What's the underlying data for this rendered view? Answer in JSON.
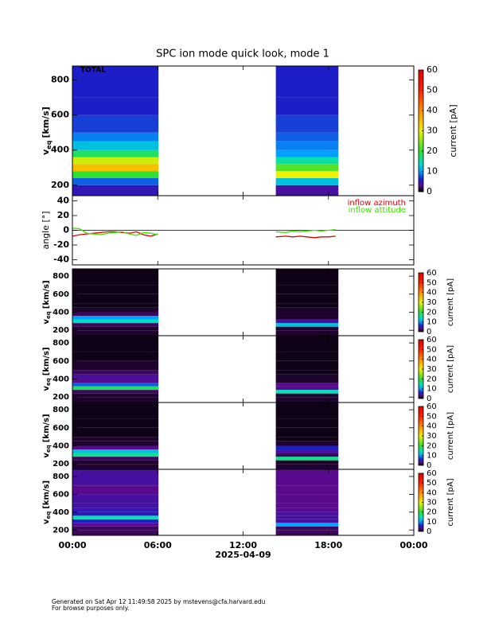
{
  "colormap": [
    [
      0,
      "#000000"
    ],
    [
      3,
      "#5a0a8c"
    ],
    [
      6,
      "#1e1ec8"
    ],
    [
      10,
      "#00a0ff"
    ],
    [
      14,
      "#00e0c0"
    ],
    [
      20,
      "#30e030"
    ],
    [
      30,
      "#f0f000"
    ],
    [
      40,
      "#ff8c00"
    ],
    [
      50,
      "#ff2000"
    ],
    [
      60,
      "#e00000"
    ]
  ],
  "footer": [
    "Generated on Sat Apr 12 11:49:58 2025 by mstevens@cfa.harvard.edu",
    "For browse purposes only."
  ],
  "chart_data": [
    {
      "type": "heatmap",
      "title": "SPC ion mode quick look, mode 1",
      "label": "TOTAL",
      "y_label": "v",
      "y_label_sub": "eq",
      "y_label_unit": "[km/s]",
      "xlim": [
        0,
        24
      ],
      "ylim": [
        140,
        880
      ],
      "yticks": [
        200,
        400,
        600,
        800
      ],
      "intervals": [
        [
          0,
          6.05
        ],
        [
          14.3,
          18.7
        ]
      ],
      "ybins": [
        140,
        200,
        240,
        280,
        320,
        360,
        400,
        450,
        500,
        600,
        700,
        880
      ],
      "values": [
        [
          5,
          8,
          20,
          35,
          28,
          18,
          12,
          9,
          7,
          6,
          6
        ],
        [
          4,
          12,
          30,
          22,
          15,
          10,
          9,
          8,
          7,
          6,
          6
        ]
      ],
      "clim": [
        0,
        60
      ],
      "cticks": [
        0,
        10,
        20,
        30,
        40,
        50,
        60
      ],
      "clabel": "current [pA]"
    },
    {
      "type": "line",
      "y_label": "angle [°]",
      "xlim": [
        0,
        24
      ],
      "ylim": [
        -47,
        47
      ],
      "yticks": [
        -40,
        -20,
        0,
        20,
        40
      ],
      "zeroline": true,
      "legend": "top-right",
      "x": [
        0,
        0.5,
        1,
        1.5,
        2,
        2.5,
        3,
        3.5,
        4,
        4.5,
        5,
        5.5,
        6,
        10,
        14.3,
        15,
        15.5,
        16,
        16.5,
        17,
        17.5,
        18,
        18.5
      ],
      "series": [
        {
          "name": "inflow azimuth",
          "color": "#e00000",
          "values": [
            -8,
            -6,
            -5,
            -4,
            -3,
            -2,
            -2,
            -3,
            -4,
            -2,
            -6,
            -8,
            -5,
            null,
            -9,
            -8,
            -9,
            -8,
            -9,
            -10,
            -9,
            -9,
            -8
          ]
        },
        {
          "name": "inflow attitude",
          "color": "#40e000",
          "values": [
            3,
            2,
            -4,
            -5,
            -6,
            -4,
            -3,
            -2,
            -5,
            -7,
            -3,
            -4,
            -6,
            null,
            -2,
            -3,
            -1,
            -2,
            -1,
            0,
            -1,
            0,
            1
          ]
        }
      ]
    },
    {
      "type": "heatmap",
      "y_label": "v",
      "y_label_sub": "eq",
      "y_label_unit": "[km/s]",
      "xlim": [
        0,
        24
      ],
      "ylim": [
        140,
        880
      ],
      "yticks": [
        200,
        400,
        600,
        800
      ],
      "intervals": [
        [
          0,
          6.05
        ],
        [
          14.3,
          18.7
        ]
      ],
      "ybins": [
        140,
        200,
        240,
        280,
        320,
        360,
        400,
        450,
        500,
        600,
        700,
        880
      ],
      "values": [
        [
          1,
          1,
          2,
          14,
          10,
          2,
          1,
          0.5,
          0.5,
          0.5,
          0.5
        ],
        [
          1,
          1,
          12,
          4,
          1,
          1,
          1,
          0.5,
          0.5,
          0.5,
          0.5
        ]
      ],
      "clim": [
        0,
        60
      ],
      "cticks": [
        0,
        10,
        20,
        30,
        40,
        50,
        60
      ],
      "clabel": "current [pA]"
    },
    {
      "type": "heatmap",
      "y_label": "v",
      "y_label_sub": "eq",
      "y_label_unit": "[km/s]",
      "xlim": [
        0,
        24
      ],
      "ylim": [
        140,
        880
      ],
      "yticks": [
        200,
        400,
        600,
        800
      ],
      "intervals": [
        [
          0,
          6.05
        ],
        [
          14.3,
          18.7
        ]
      ],
      "ybins": [
        140,
        200,
        240,
        280,
        320,
        360,
        400,
        450,
        500,
        600,
        700,
        880
      ],
      "values": [
        [
          1,
          1,
          2,
          18,
          8,
          3,
          4,
          2,
          1,
          0.5,
          0.5
        ],
        [
          1,
          1,
          14,
          3,
          3,
          1,
          1,
          0.5,
          0.5,
          0.5,
          0.5
        ]
      ],
      "clim": [
        0,
        60
      ],
      "cticks": [
        0,
        10,
        20,
        30,
        40,
        50,
        60
      ],
      "clabel": "current [pA]"
    },
    {
      "type": "heatmap",
      "y_label": "v",
      "y_label_sub": "eq",
      "y_label_unit": "[km/s]",
      "xlim": [
        0,
        24
      ],
      "ylim": [
        140,
        880
      ],
      "yticks": [
        200,
        400,
        600,
        800
      ],
      "intervals": [
        [
          0,
          6.05
        ],
        [
          14.3,
          18.7
        ]
      ],
      "ybins": [
        140,
        200,
        240,
        280,
        320,
        360,
        400,
        450,
        500,
        600,
        700,
        880
      ],
      "values": [
        [
          1,
          1,
          2,
          16,
          12,
          3,
          1,
          1,
          0.5,
          0.5,
          0.5
        ],
        [
          1,
          1,
          16,
          2,
          4,
          6,
          1,
          0.5,
          0.5,
          0.5,
          0.5
        ]
      ],
      "clim": [
        0,
        60
      ],
      "cticks": [
        0,
        10,
        20,
        30,
        40,
        50,
        60
      ],
      "clabel": "current [pA]"
    },
    {
      "type": "heatmap",
      "y_label": "v",
      "y_label_sub": "eq",
      "y_label_unit": "[km/s]",
      "xlim": [
        0,
        24
      ],
      "ylim": [
        140,
        880
      ],
      "yticks": [
        200,
        400,
        600,
        800
      ],
      "intervals": [
        [
          0,
          6.05
        ],
        [
          14.3,
          18.7
        ]
      ],
      "ybins": [
        140,
        200,
        240,
        280,
        320,
        360,
        400,
        450,
        500,
        600,
        700,
        880
      ],
      "values": [
        [
          2,
          2,
          3,
          6,
          14,
          5,
          5,
          4,
          4,
          3,
          4
        ],
        [
          2,
          2,
          10,
          4,
          4,
          4,
          3,
          3,
          3,
          3,
          3
        ]
      ],
      "clim": [
        0,
        60
      ],
      "cticks": [
        0,
        10,
        20,
        30,
        40,
        50,
        60
      ],
      "clabel": "current [pA]",
      "xticks": [
        {
          "value": 0,
          "label": "00:00"
        },
        {
          "value": 6,
          "label": "06:00"
        },
        {
          "value": 12,
          "label": "12:00"
        },
        {
          "value": 18,
          "label": "18:00"
        },
        {
          "value": 24,
          "label": "00:00"
        }
      ],
      "x_label": "2025-04-09"
    }
  ]
}
